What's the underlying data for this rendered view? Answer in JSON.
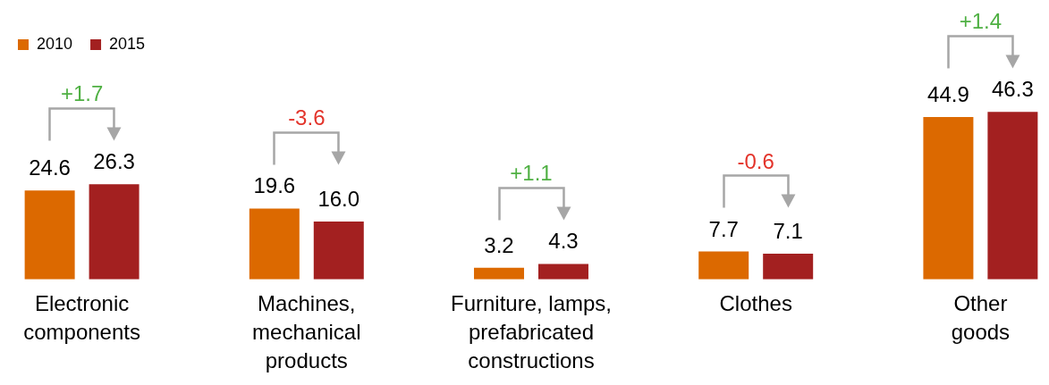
{
  "chart_data": {
    "type": "bar",
    "legend": "top left",
    "categories": [
      "Electronic\ncomponents",
      "Machines,\nmechanical\nproducts",
      "Furniture, lamps,\nprefabricated\nconstructions",
      "Clothes",
      "Other\ngoods"
    ],
    "series": [
      {
        "name": "2010",
        "color": "#dc6900",
        "values": [
          24.6,
          19.6,
          3.2,
          7.7,
          44.9
        ],
        "value_labels": [
          "24.6",
          "19.6",
          "3.2",
          "7.7",
          "44.9"
        ]
      },
      {
        "name": "2015",
        "color": "#a32020",
        "values": [
          26.3,
          16.0,
          4.3,
          7.1,
          46.3
        ],
        "value_labels": [
          "26.3",
          "16.0",
          "4.3",
          "7.1",
          "46.3"
        ]
      }
    ],
    "annotations": [
      "+1.7",
      "-3.6",
      "+1.1",
      "-0.6",
      "+1.4"
    ]
  }
}
